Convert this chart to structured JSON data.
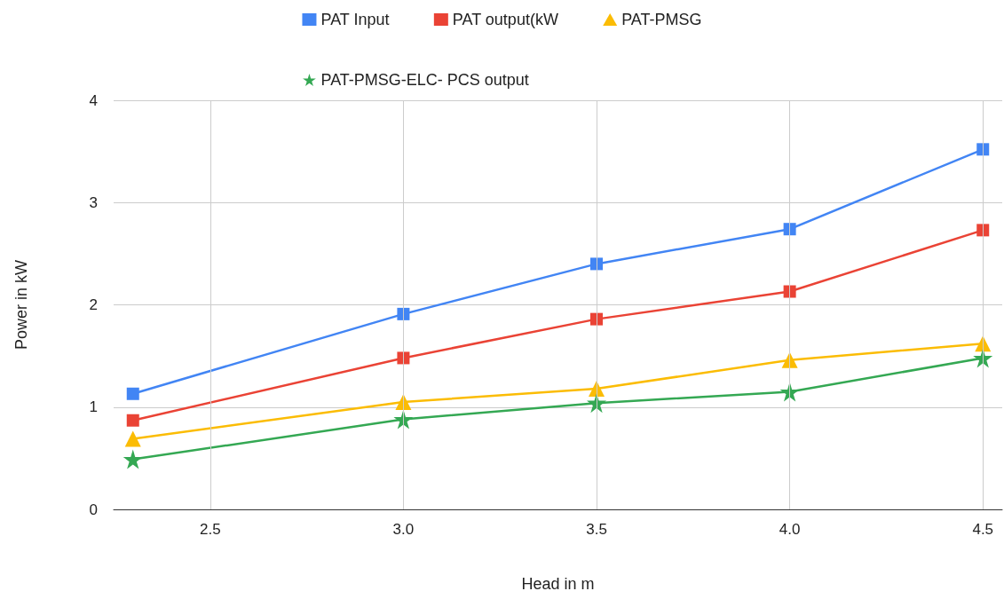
{
  "chart_data": {
    "type": "line",
    "xlabel": "Head in m",
    "ylabel": "Power in kW",
    "x": [
      2.3,
      3.0,
      3.5,
      4.0,
      4.5
    ],
    "xlim": [
      2.25,
      4.55
    ],
    "xticks": [
      2.5,
      {
        "value": 3,
        "label": "3.0"
      },
      3.5,
      {
        "value": 4,
        "label": "4.0"
      },
      4.5
    ],
    "ylim": [
      0,
      4
    ],
    "yticks": [
      0,
      1,
      2,
      3,
      4
    ],
    "grid": true,
    "legend": "top",
    "line_style": "solid",
    "series": [
      {
        "name": "PAT Input",
        "color": "#4285f4",
        "marker": "square",
        "values": [
          1.13,
          1.91,
          2.4,
          2.74,
          3.52
        ]
      },
      {
        "name": "PAT output(kW",
        "color": "#ea4335",
        "marker": "square",
        "values": [
          0.87,
          1.48,
          1.86,
          2.13,
          2.73
        ]
      },
      {
        "name": "PAT-PMSG",
        "color": "#fbbc04",
        "marker": "triangle",
        "values": [
          0.69,
          1.05,
          1.18,
          1.46,
          1.62
        ]
      },
      {
        "name": "PAT-PMSG-ELC- PCS output",
        "color": "#34a853",
        "marker": "star",
        "values": [
          0.49,
          0.88,
          1.04,
          1.15,
          1.48
        ]
      }
    ]
  }
}
